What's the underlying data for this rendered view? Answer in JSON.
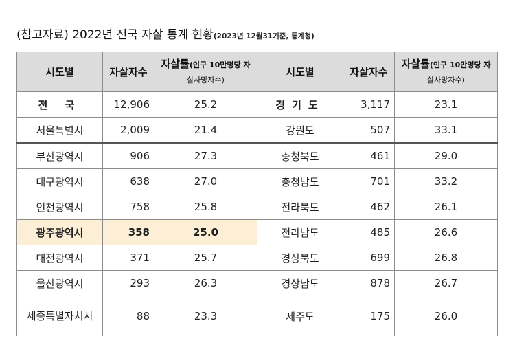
{
  "title": {
    "main": "(참고자료) 2022년 전국 자살 통계 현황",
    "sub": "(2023년 12월31기준, 통계청)"
  },
  "headers": {
    "region": "시도별",
    "count": "자살자수",
    "rate_big": "자살률",
    "rate_small_1": "(인구 10만명당 자",
    "rate_small_2": "살사망자수)"
  },
  "left_rows": [
    {
      "region": "전 국",
      "count": "12,906",
      "rate": "25.2"
    },
    {
      "region": "서울특별시",
      "count": "2,009",
      "rate": "21.4"
    },
    {
      "region": "부산광역시",
      "count": "906",
      "rate": "27.3"
    },
    {
      "region": "대구광역시",
      "count": "638",
      "rate": "27.0"
    },
    {
      "region": "인천광역시",
      "count": "758",
      "rate": "25.8"
    },
    {
      "region": "광주광역시",
      "count": "358",
      "rate": "25.0"
    },
    {
      "region": "대전광역시",
      "count": "371",
      "rate": "25.7"
    },
    {
      "region": "울산광역시",
      "count": "293",
      "rate": "26.3"
    },
    {
      "region": "세종특별자치시",
      "count": "88",
      "rate": "23.3"
    }
  ],
  "right_rows": [
    {
      "region": "경기도",
      "count": "3,117",
      "rate": "23.1"
    },
    {
      "region": "강원도",
      "count": "507",
      "rate": "33.1"
    },
    {
      "region": "충청북도",
      "count": "461",
      "rate": "29.0"
    },
    {
      "region": "충청남도",
      "count": "701",
      "rate": "33.2"
    },
    {
      "region": "전라북도",
      "count": "462",
      "rate": "26.1"
    },
    {
      "region": "전라남도",
      "count": "485",
      "rate": "26.6"
    },
    {
      "region": "경상북도",
      "count": "699",
      "rate": "26.8"
    },
    {
      "region": "경상남도",
      "count": "878",
      "rate": "26.7"
    },
    {
      "region": "제주도",
      "count": "175",
      "rate": "26.0"
    }
  ],
  "colors": {
    "header_bg": "#dcdcdc",
    "highlight_bg": "#fdefd6",
    "border": "#8c8c8c"
  }
}
